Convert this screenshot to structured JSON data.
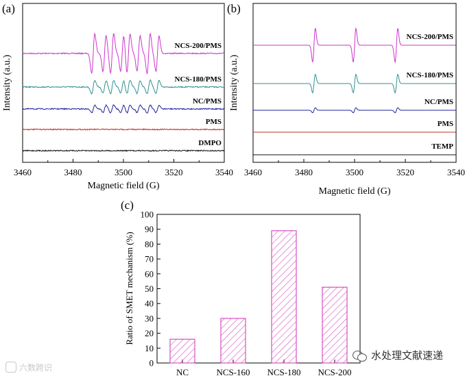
{
  "chart_data": [
    {
      "panel": "(a)",
      "type": "line",
      "subtype": "epr-spectra-stacked",
      "xlabel": "Magnetic field (G)",
      "ylabel": "Intensity (a.u.)",
      "xlim": [
        3460,
        3540
      ],
      "xticks": [
        3460,
        3480,
        3500,
        3520,
        3540
      ],
      "yticks_shown": false,
      "series": [
        {
          "name": "NCS-200/PMS",
          "color": "#cc33cc",
          "peaks_G": [
            3488,
            3492.5,
            3495.5,
            3499.5,
            3502,
            3506,
            3510,
            3513.5
          ],
          "relative_intensity": 1.0
        },
        {
          "name": "NCS-180/PMS",
          "color": "#2f8f8f",
          "peaks_G": [
            3488,
            3492.5,
            3495.5,
            3499.5,
            3502,
            3506,
            3510,
            3513.5
          ],
          "relative_intensity": 0.35
        },
        {
          "name": "NC/PMS",
          "color": "#1f1fa0",
          "peaks_G": [
            3488,
            3492.5,
            3495.5,
            3499.5,
            3502,
            3506,
            3510,
            3513.5
          ],
          "relative_intensity": 0.2
        },
        {
          "name": "PMS",
          "color": "#c0302a",
          "peaks_G": [],
          "relative_intensity": 0.0
        },
        {
          "name": "DMPO",
          "color": "#111111",
          "peaks_G": [],
          "relative_intensity": 0.0
        }
      ]
    },
    {
      "panel": "(b)",
      "type": "line",
      "subtype": "epr-spectra-stacked",
      "xlabel": "Magnetic field (G)",
      "ylabel": "Intensity (a.u.)",
      "xlim": [
        3460,
        3540
      ],
      "xticks": [
        3460,
        3480,
        3500,
        3520,
        3540
      ],
      "yticks_shown": false,
      "series": [
        {
          "name": "NCS-200/PMS",
          "color": "#cc33cc",
          "peaks_G": [
            3484,
            3500,
            3516.5
          ],
          "relative_intensity": 1.0
        },
        {
          "name": "NCS-180/PMS",
          "color": "#2f8f8f",
          "peaks_G": [
            3484,
            3500,
            3516.5
          ],
          "relative_intensity": 0.55
        },
        {
          "name": "NC/PMS",
          "color": "#1f1fa0",
          "peaks_G": [
            3484,
            3500,
            3516.5
          ],
          "relative_intensity": 0.15
        },
        {
          "name": "PMS",
          "color": "#c0302a",
          "peaks_G": [],
          "relative_intensity": 0.0
        },
        {
          "name": "TEMP",
          "color": "#111111",
          "peaks_G": [],
          "relative_intensity": 0.0
        }
      ]
    },
    {
      "panel": "(c)",
      "type": "bar",
      "categories": [
        "NC",
        "NCS-160",
        "NCS-180",
        "NCS-200"
      ],
      "values": [
        16,
        30,
        89,
        51
      ],
      "ylabel": "Ratio of SMET mechanism (%)",
      "xlabel": "",
      "ylim": [
        0,
        100
      ],
      "yticks": [
        0,
        10,
        20,
        30,
        40,
        50,
        60,
        70,
        80,
        90,
        100
      ],
      "bar_fill": "hatched",
      "bar_color": "#d64fc0"
    }
  ],
  "watermarks": {
    "left": "六数跨识",
    "right": "水处理文献速递"
  }
}
